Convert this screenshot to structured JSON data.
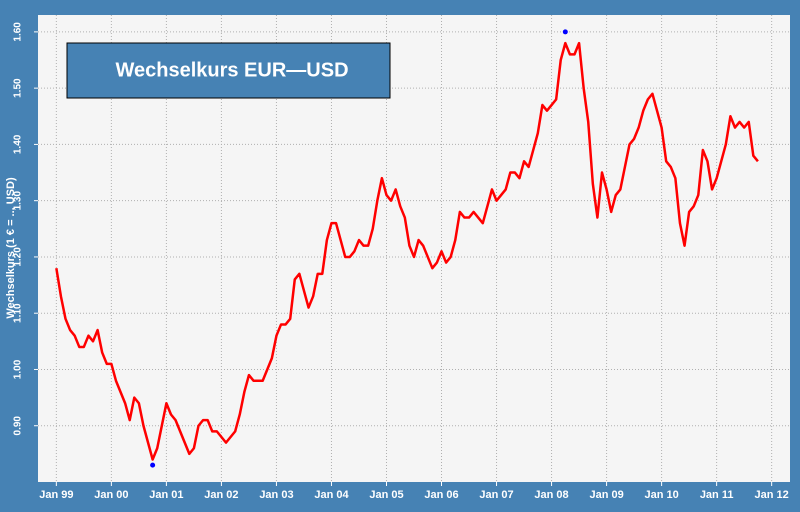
{
  "chart_data": {
    "type": "line",
    "title": "Wechselkurs EUR—USD",
    "y_label": "Wechselkurs (1 € = ... USD)",
    "x": [
      "1999-01",
      "1999-02",
      "1999-03",
      "1999-04",
      "1999-05",
      "1999-06",
      "1999-07",
      "1999-08",
      "1999-09",
      "1999-10",
      "1999-11",
      "1999-12",
      "2000-01",
      "2000-02",
      "2000-03",
      "2000-04",
      "2000-05",
      "2000-06",
      "2000-07",
      "2000-08",
      "2000-09",
      "2000-10",
      "2000-11",
      "2000-12",
      "2001-01",
      "2001-02",
      "2001-03",
      "2001-04",
      "2001-05",
      "2001-06",
      "2001-07",
      "2001-08",
      "2001-09",
      "2001-10",
      "2001-11",
      "2001-12",
      "2002-01",
      "2002-02",
      "2002-03",
      "2002-04",
      "2002-05",
      "2002-06",
      "2002-07",
      "2002-08",
      "2002-09",
      "2002-10",
      "2002-11",
      "2002-12",
      "2003-01",
      "2003-02",
      "2003-03",
      "2003-04",
      "2003-05",
      "2003-06",
      "2003-07",
      "2003-08",
      "2003-09",
      "2003-10",
      "2003-11",
      "2003-12",
      "2004-01",
      "2004-02",
      "2004-03",
      "2004-04",
      "2004-05",
      "2004-06",
      "2004-07",
      "2004-08",
      "2004-09",
      "2004-10",
      "2004-11",
      "2004-12",
      "2005-01",
      "2005-02",
      "2005-03",
      "2005-04",
      "2005-05",
      "2005-06",
      "2005-07",
      "2005-08",
      "2005-09",
      "2005-10",
      "2005-11",
      "2005-12",
      "2006-01",
      "2006-02",
      "2006-03",
      "2006-04",
      "2006-05",
      "2006-06",
      "2006-07",
      "2006-08",
      "2006-09",
      "2006-10",
      "2006-11",
      "2006-12",
      "2007-01",
      "2007-02",
      "2007-03",
      "2007-04",
      "2007-05",
      "2007-06",
      "2007-07",
      "2007-08",
      "2007-09",
      "2007-10",
      "2007-11",
      "2007-12",
      "2008-01",
      "2008-02",
      "2008-03",
      "2008-04",
      "2008-05",
      "2008-06",
      "2008-07",
      "2008-08",
      "2008-09",
      "2008-10",
      "2008-11",
      "2008-12",
      "2009-01",
      "2009-02",
      "2009-03",
      "2009-04",
      "2009-05",
      "2009-06",
      "2009-07",
      "2009-08",
      "2009-09",
      "2009-10",
      "2009-11",
      "2009-12",
      "2010-01",
      "2010-02",
      "2010-03",
      "2010-04",
      "2010-05",
      "2010-06",
      "2010-07",
      "2010-08",
      "2010-09",
      "2010-10",
      "2010-11",
      "2010-12",
      "2011-01",
      "2011-02",
      "2011-03",
      "2011-04",
      "2011-05",
      "2011-06",
      "2011-07",
      "2011-08",
      "2011-09",
      "2011-10"
    ],
    "values": [
      1.18,
      1.13,
      1.09,
      1.07,
      1.06,
      1.04,
      1.04,
      1.06,
      1.05,
      1.07,
      1.03,
      1.01,
      1.01,
      0.98,
      0.96,
      0.94,
      0.91,
      0.95,
      0.94,
      0.9,
      0.87,
      0.84,
      0.86,
      0.9,
      0.94,
      0.92,
      0.91,
      0.89,
      0.87,
      0.85,
      0.86,
      0.9,
      0.91,
      0.91,
      0.89,
      0.89,
      0.88,
      0.87,
      0.88,
      0.89,
      0.92,
      0.96,
      0.99,
      0.98,
      0.98,
      0.98,
      1.0,
      1.02,
      1.06,
      1.08,
      1.08,
      1.09,
      1.16,
      1.17,
      1.14,
      1.11,
      1.13,
      1.17,
      1.17,
      1.23,
      1.26,
      1.26,
      1.23,
      1.2,
      1.2,
      1.21,
      1.23,
      1.22,
      1.22,
      1.25,
      1.3,
      1.34,
      1.31,
      1.3,
      1.32,
      1.29,
      1.27,
      1.22,
      1.2,
      1.23,
      1.22,
      1.2,
      1.18,
      1.19,
      1.21,
      1.19,
      1.2,
      1.23,
      1.28,
      1.27,
      1.27,
      1.28,
      1.27,
      1.26,
      1.29,
      1.32,
      1.3,
      1.31,
      1.32,
      1.35,
      1.35,
      1.34,
      1.37,
      1.36,
      1.39,
      1.42,
      1.47,
      1.46,
      1.47,
      1.48,
      1.55,
      1.58,
      1.56,
      1.56,
      1.58,
      1.5,
      1.44,
      1.33,
      1.27,
      1.35,
      1.32,
      1.28,
      1.31,
      1.32,
      1.36,
      1.4,
      1.41,
      1.43,
      1.46,
      1.48,
      1.49,
      1.46,
      1.43,
      1.37,
      1.36,
      1.34,
      1.26,
      1.22,
      1.28,
      1.29,
      1.31,
      1.39,
      1.37,
      1.32,
      1.34,
      1.37,
      1.4,
      1.45,
      1.43,
      1.44,
      1.43,
      1.44,
      1.38,
      1.37
    ],
    "color": "#ff0000",
    "markers": {
      "x": [
        "2000-10",
        "2008-04"
      ],
      "values": [
        0.83,
        1.6
      ],
      "color": "#0000ff"
    },
    "xlim": [
      "1998-09",
      "2012-05"
    ],
    "xticks": [
      {
        "value": "1999-01",
        "label": "Jan 99"
      },
      {
        "value": "2000-01",
        "label": "Jan 00"
      },
      {
        "value": "2001-01",
        "label": "Jan 01"
      },
      {
        "value": "2002-01",
        "label": "Jan 02"
      },
      {
        "value": "2003-01",
        "label": "Jan 03"
      },
      {
        "value": "2004-01",
        "label": "Jan 04"
      },
      {
        "value": "2005-01",
        "label": "Jan 05"
      },
      {
        "value": "2006-01",
        "label": "Jan 06"
      },
      {
        "value": "2007-01",
        "label": "Jan 07"
      },
      {
        "value": "2008-01",
        "label": "Jan 08"
      },
      {
        "value": "2009-01",
        "label": "Jan 09"
      },
      {
        "value": "2010-01",
        "label": "Jan 10"
      },
      {
        "value": "2011-01",
        "label": "Jan 11"
      },
      {
        "value": "2012-01",
        "label": "Jan 12"
      }
    ],
    "ylim": [
      0.8,
      1.63
    ],
    "yticks": [
      {
        "value": 0.9,
        "label": "0.90"
      },
      {
        "value": 1.0,
        "label": "1.00"
      },
      {
        "value": 1.1,
        "label": "1.10"
      },
      {
        "value": 1.2,
        "label": "1.20"
      },
      {
        "value": 1.3,
        "label": "1.30"
      },
      {
        "value": 1.4,
        "label": "1.40"
      },
      {
        "value": 1.5,
        "label": "1.50"
      },
      {
        "value": 1.6,
        "label": "1.60"
      }
    ],
    "grid": true
  }
}
